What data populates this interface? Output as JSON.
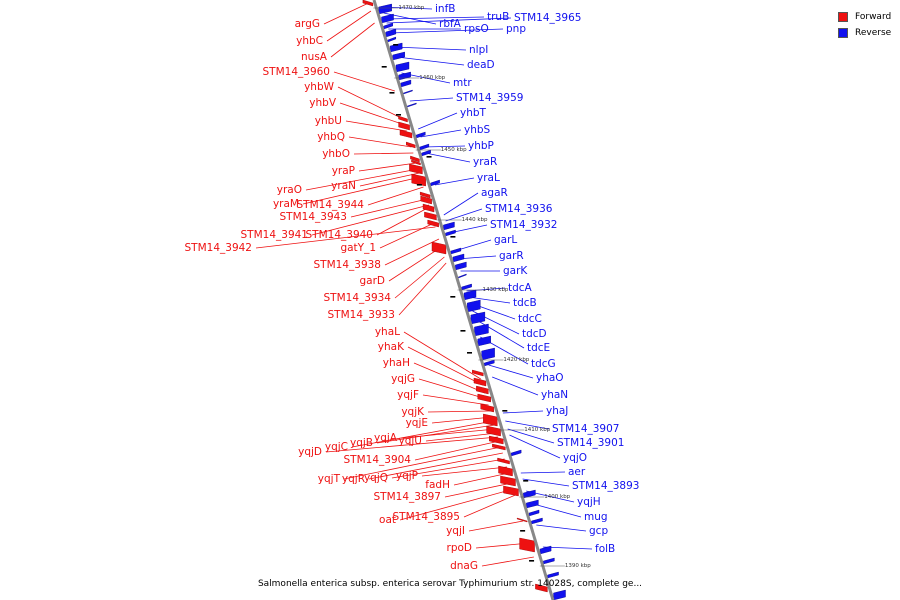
{
  "legend": {
    "items": [
      {
        "label": "Forward",
        "color": "#ee1111"
      },
      {
        "label": "Reverse",
        "color": "#1111ee"
      }
    ]
  },
  "caption": "Salmonella enterica subsp. enterica serovar Typhimurium str. 14028S, complete ge...",
  "colors": {
    "forward": "#ee1111",
    "reverse": "#1111ee",
    "backbone": "#888888"
  },
  "ticks": [
    "1470 kbp",
    "1460 kbp",
    "1450 kbp",
    "1440 kbp",
    "1430 kbp",
    "1420 kbp",
    "1410 kbp",
    "1400 kbp",
    "1390 kbp"
  ],
  "forward_genes": [
    "argG",
    "yhbC",
    "nusA",
    "STM14_3960",
    "yhbW",
    "yhbV",
    "yhbU",
    "yhbQ",
    "yhbO",
    "yraP",
    "yraO",
    "yraN",
    "yraM",
    "STM14_3944",
    "STM14_3943",
    "STM14_3941",
    "STM14_3940",
    "gatY_1",
    "STM14_3942",
    "STM14_3938",
    "garD",
    "STM14_3934",
    "STM14_3933",
    "yhaL",
    "yhaK",
    "yhaH",
    "yqjG",
    "yqjF",
    "yqjK",
    "yqjE",
    "yqjC",
    "yqjB",
    "yqjA",
    "yqjU",
    "yqjD",
    "STM14_3904",
    "yqjT",
    "yqjR",
    "yqjQ",
    "yqjP",
    "fadH",
    "STM14_3897",
    "oat",
    "STM14_3895",
    "yqjI",
    "rpoD",
    "dnaG"
  ],
  "reverse_genes": [
    "infB",
    "rbfA",
    "truB",
    "STM14_3965",
    "rpsO",
    "pnp",
    "nlpI",
    "deaD",
    "mtr",
    "STM14_3959",
    "yhbT",
    "yhbS",
    "yhbP",
    "yraR",
    "yraL",
    "agaR",
    "STM14_3936",
    "STM14_3932",
    "garL",
    "garR",
    "garK",
    "tdcA",
    "tdcB",
    "tdcC",
    "tdcD",
    "tdcE",
    "tdcG",
    "yhaO",
    "yhaN",
    "yhaJ",
    "STM14_3907",
    "STM14_3901",
    "yqjO",
    "aer",
    "STM14_3893",
    "yqjH",
    "mug",
    "gcp",
    "folB"
  ]
}
